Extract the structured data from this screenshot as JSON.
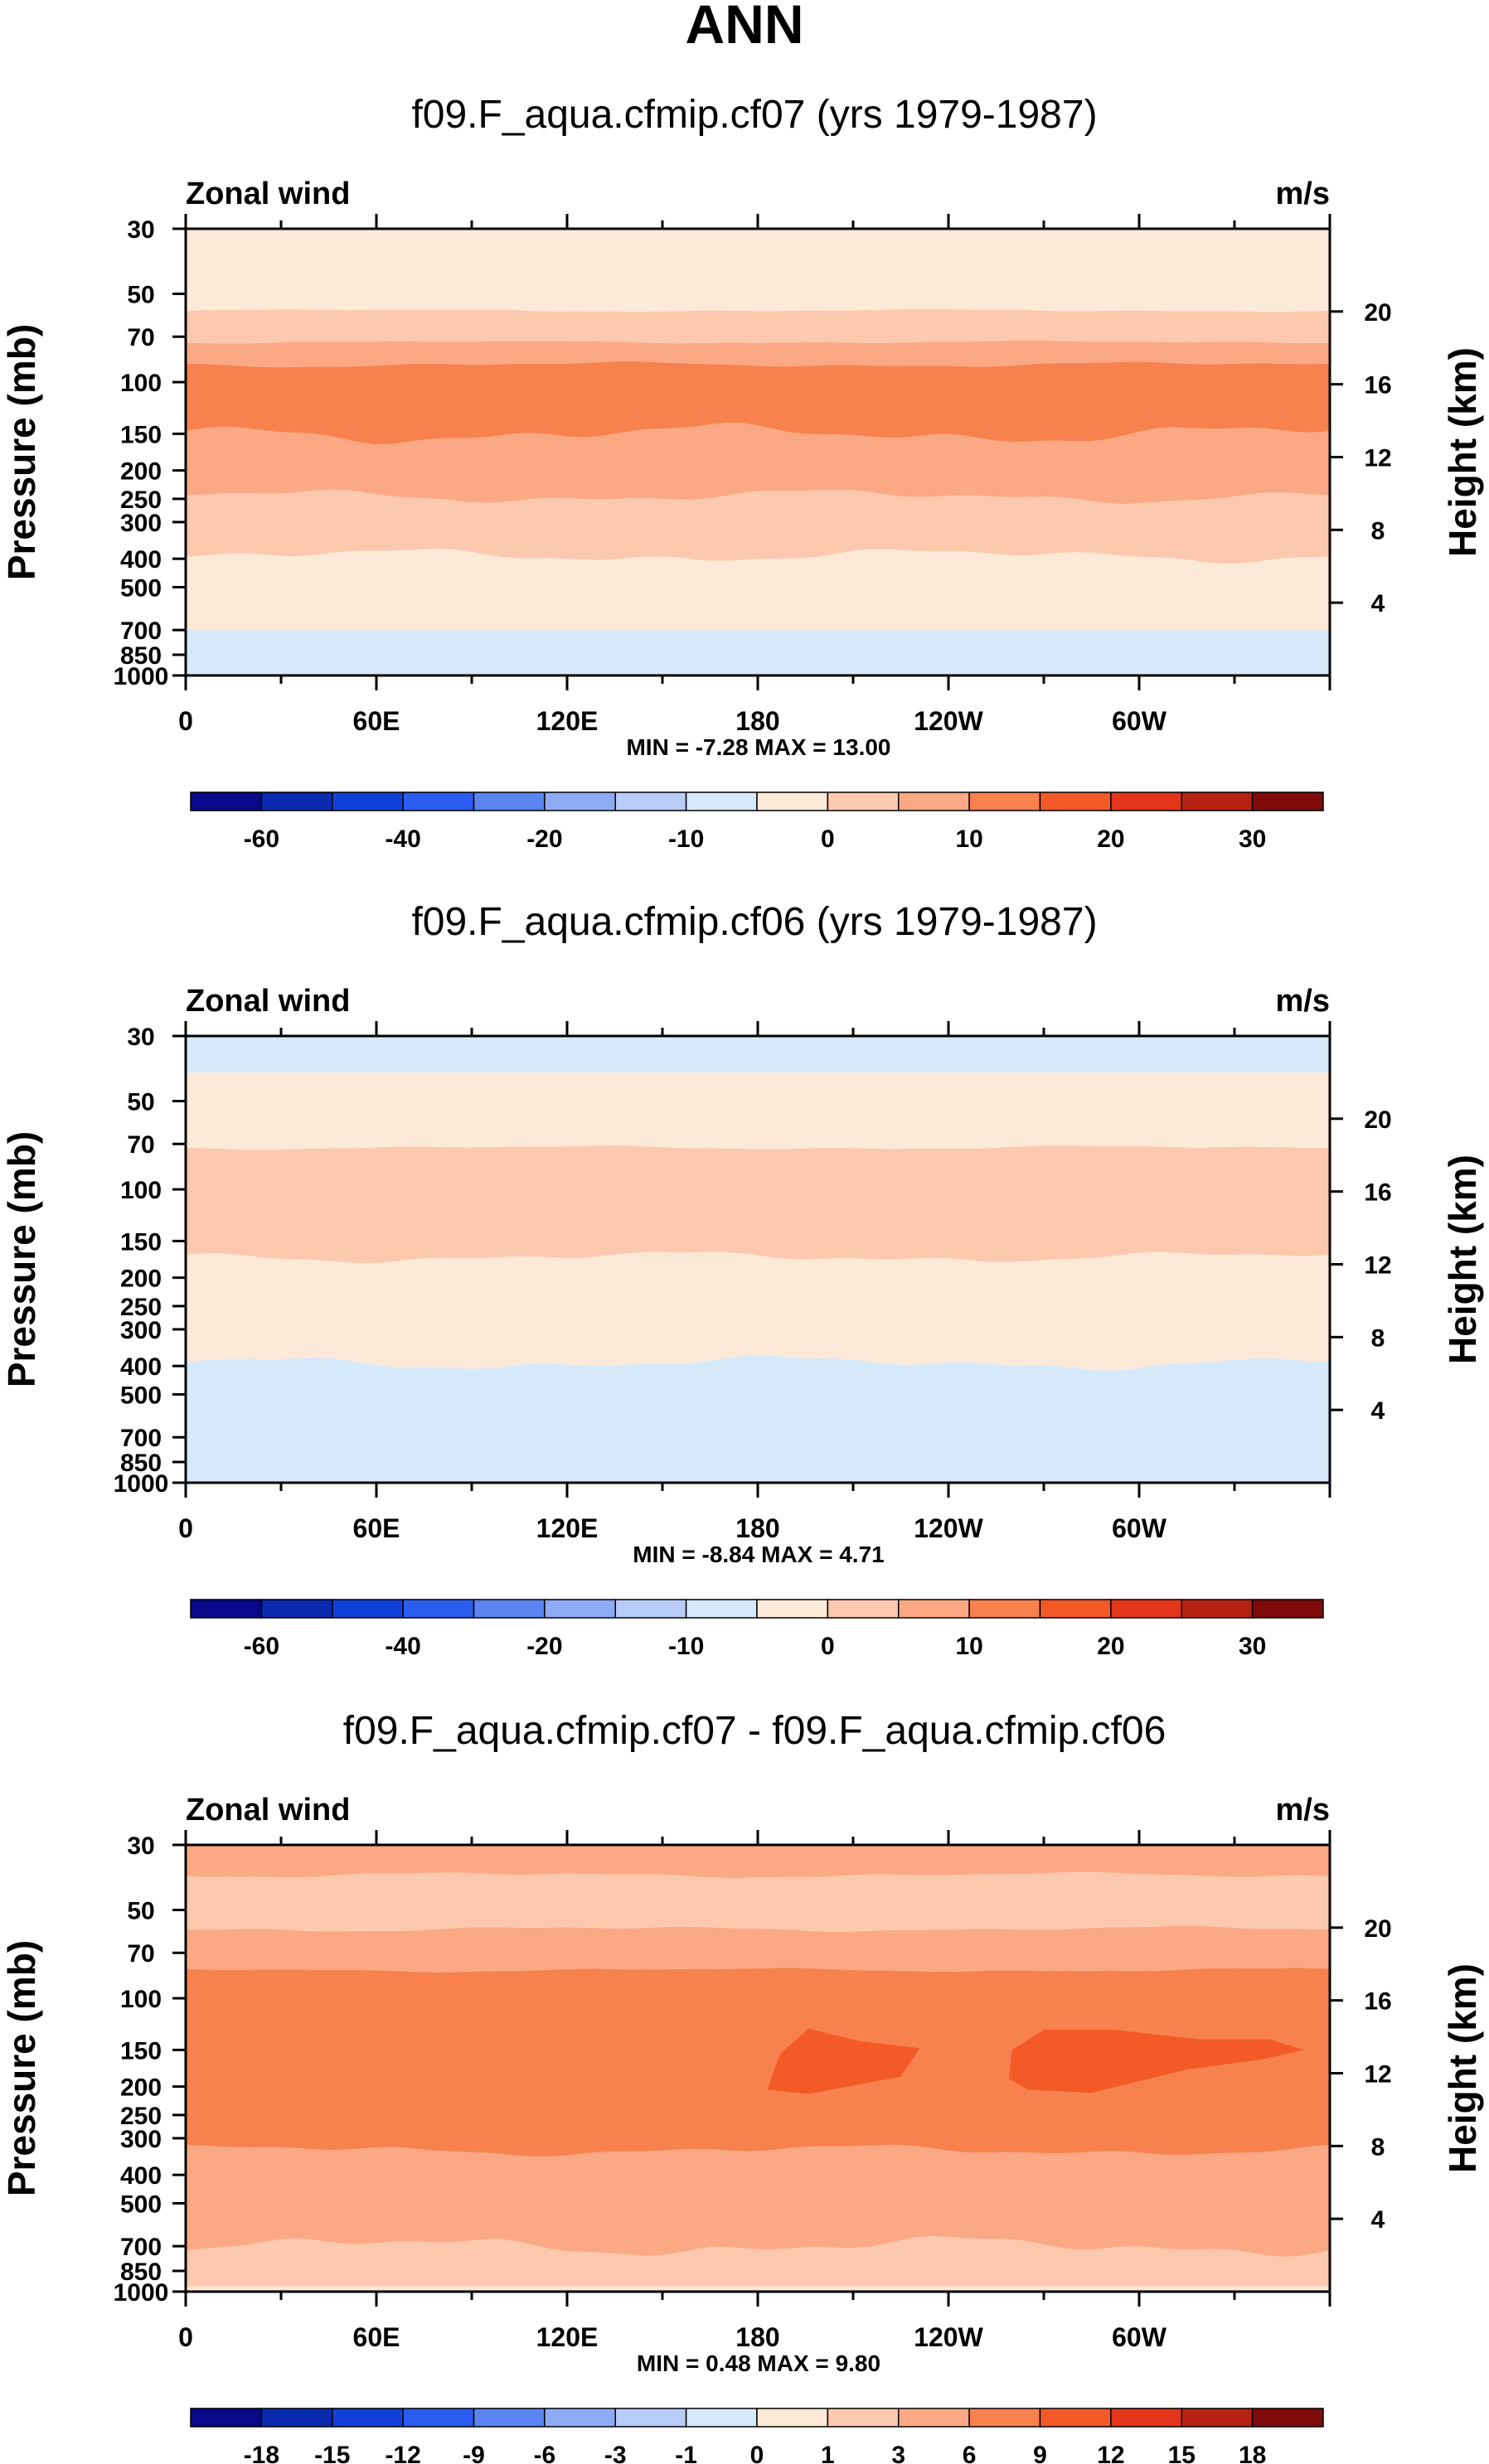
{
  "figure": {
    "title": "ANN"
  },
  "chart_data": [
    {
      "type": "heatmap",
      "title": "f09.F_aqua.cfmip.cf07 (yrs 1979-1987)",
      "left_label": "Zonal wind",
      "right_label": "m/s",
      "ylabel": "Pressure (mb)",
      "ylabel_right": "Height (km)",
      "x_ticks": [
        "0",
        "60E",
        "120E",
        "180",
        "120W",
        "60W"
      ],
      "y_ticks": [
        "30",
        "50",
        "70",
        "100",
        "150",
        "200",
        "250",
        "300",
        "400",
        "500",
        "700",
        "850",
        "1000"
      ],
      "y_ticks_right": [
        "20",
        "16",
        "12",
        "8",
        "4"
      ],
      "ylim": [
        1000,
        30
      ],
      "stats": "MIN =  -7.28  MAX =  13.00",
      "contour_bands": [
        {
          "from_p": 1000,
          "to_p": 700,
          "color": "#d6e9fb",
          "wave": 0.0
        },
        {
          "from_p": 700,
          "to_p": 390,
          "color": "#fde9d8",
          "wave": 10
        },
        {
          "from_p": 390,
          "to_p": 245,
          "color": "#fcc8ae",
          "wave": 10
        },
        {
          "from_p": 245,
          "to_p": 150,
          "color": "#fba884",
          "wave": 14
        },
        {
          "from_p": 150,
          "to_p": 87,
          "color": "#f7824e",
          "wave": 4
        },
        {
          "from_p": 87,
          "to_p": 73,
          "color": "#fba884",
          "wave": 2
        },
        {
          "from_p": 73,
          "to_p": 57,
          "color": "#fcc8ae",
          "wave": 2
        },
        {
          "from_p": 57,
          "to_p": 30,
          "color": "#fde9d8",
          "wave": 0
        }
      ],
      "colorbar": {
        "labels": [
          "-60",
          "-40",
          "-20",
          "-10",
          "0",
          "10",
          "20",
          "30"
        ],
        "colors": [
          "#08088a",
          "#0a2ab0",
          "#1040d8",
          "#2a5cf0",
          "#5b84f0",
          "#8eacf5",
          "#b8ccf8",
          "#d6e9fb",
          "#fde9d8",
          "#fcc8ae",
          "#fba884",
          "#f7824e",
          "#f45a28",
          "#e3361a",
          "#b52212",
          "#7e0a0a"
        ]
      }
    },
    {
      "type": "heatmap",
      "title": "f09.F_aqua.cfmip.cf06 (yrs 1979-1987)",
      "left_label": "Zonal wind",
      "right_label": "m/s",
      "ylabel": "Pressure (mb)",
      "ylabel_right": "Height (km)",
      "x_ticks": [
        "0",
        "60E",
        "120E",
        "180",
        "120W",
        "60W"
      ],
      "y_ticks": [
        "30",
        "50",
        "70",
        "100",
        "150",
        "200",
        "250",
        "300",
        "400",
        "500",
        "700",
        "850",
        "1000"
      ],
      "y_ticks_right": [
        "20",
        "16",
        "12",
        "8",
        "4"
      ],
      "ylim": [
        1000,
        30
      ],
      "stats": "MIN =  -8.84  MAX =   4.71",
      "contour_bands": [
        {
          "from_p": 1000,
          "to_p": 390,
          "color": "#d6e9fb",
          "wave": 10
        },
        {
          "from_p": 390,
          "to_p": 170,
          "color": "#fde9d8",
          "wave": 8
        },
        {
          "from_p": 170,
          "to_p": 72,
          "color": "#fcc8ae",
          "wave": 3
        },
        {
          "from_p": 72,
          "to_p": 40,
          "color": "#fde9d8",
          "wave": 0
        },
        {
          "from_p": 40,
          "to_p": 30,
          "color": "#d6e9fb",
          "wave": 0
        }
      ],
      "colorbar": {
        "labels": [
          "-60",
          "-40",
          "-20",
          "-10",
          "0",
          "10",
          "20",
          "30"
        ],
        "colors": [
          "#08088a",
          "#0a2ab0",
          "#1040d8",
          "#2a5cf0",
          "#5b84f0",
          "#8eacf5",
          "#b8ccf8",
          "#d6e9fb",
          "#fde9d8",
          "#fcc8ae",
          "#fba884",
          "#f7824e",
          "#f45a28",
          "#e3361a",
          "#b52212",
          "#7e0a0a"
        ]
      }
    },
    {
      "type": "heatmap",
      "title": "f09.F_aqua.cfmip.cf07 - f09.F_aqua.cfmip.cf06",
      "left_label": "Zonal wind",
      "right_label": "m/s",
      "ylabel": "Pressure (mb)",
      "ylabel_right": "Height (km)",
      "x_ticks": [
        "0",
        "60E",
        "120E",
        "180",
        "120W",
        "60W"
      ],
      "y_ticks": [
        "30",
        "50",
        "70",
        "100",
        "150",
        "200",
        "250",
        "300",
        "400",
        "500",
        "700",
        "850",
        "1000"
      ],
      "y_ticks_right": [
        "20",
        "16",
        "12",
        "8",
        "4"
      ],
      "ylim": [
        1000,
        30
      ],
      "stats": "MIN =   0.48  MAX =   9.80",
      "contour_bands": [
        {
          "from_p": 1000,
          "to_p": 960,
          "color": "#fde9d8",
          "wave": 0
        },
        {
          "from_p": 960,
          "to_p": 700,
          "color": "#fcc8ae",
          "wave": 14
        },
        {
          "from_p": 700,
          "to_p": 330,
          "color": "#fba884",
          "wave": 8
        },
        {
          "from_p": 330,
          "to_p": 80,
          "color": "#f7824e",
          "wave": 3
        },
        {
          "from_p": 80,
          "to_p": 58,
          "color": "#fba884",
          "wave": 4
        },
        {
          "from_p": 58,
          "to_p": 38,
          "color": "#fcc8ae",
          "wave": 4
        },
        {
          "from_p": 38,
          "to_p": 30,
          "color": "#fba884",
          "wave": 0
        }
      ],
      "blobs": [
        {
          "color": "#f45a28",
          "points": [
            [
              183,
              205
            ],
            [
              187,
              155
            ],
            [
              196,
              127
            ],
            [
              212,
              140
            ],
            [
              231,
              148
            ],
            [
              225,
              185
            ],
            [
              196,
              212
            ]
          ]
        },
        {
          "color": "#f45a28",
          "points": [
            [
              259,
              188
            ],
            [
              260,
              150
            ],
            [
              270,
              128
            ],
            [
              292,
              128
            ],
            [
              319,
              138
            ],
            [
              341,
              138
            ],
            [
              352,
              150
            ],
            [
              338,
              162
            ],
            [
              315,
              175
            ],
            [
              285,
              210
            ],
            [
              265,
              205
            ]
          ]
        }
      ],
      "colorbar": {
        "labels": [
          "-18",
          "-15",
          "-12",
          "-9",
          "-6",
          "-3",
          "-1",
          "0",
          "1",
          "3",
          "6",
          "9",
          "12",
          "15",
          "18"
        ],
        "colors": [
          "#08088a",
          "#0a2ab0",
          "#1040d8",
          "#2a5cf0",
          "#5b84f0",
          "#8eacf5",
          "#b8ccf8",
          "#d6e9fb",
          "#fde9d8",
          "#fcc8ae",
          "#fba884",
          "#f7824e",
          "#f45a28",
          "#e3361a",
          "#b52212",
          "#7e0a0a"
        ]
      }
    }
  ]
}
